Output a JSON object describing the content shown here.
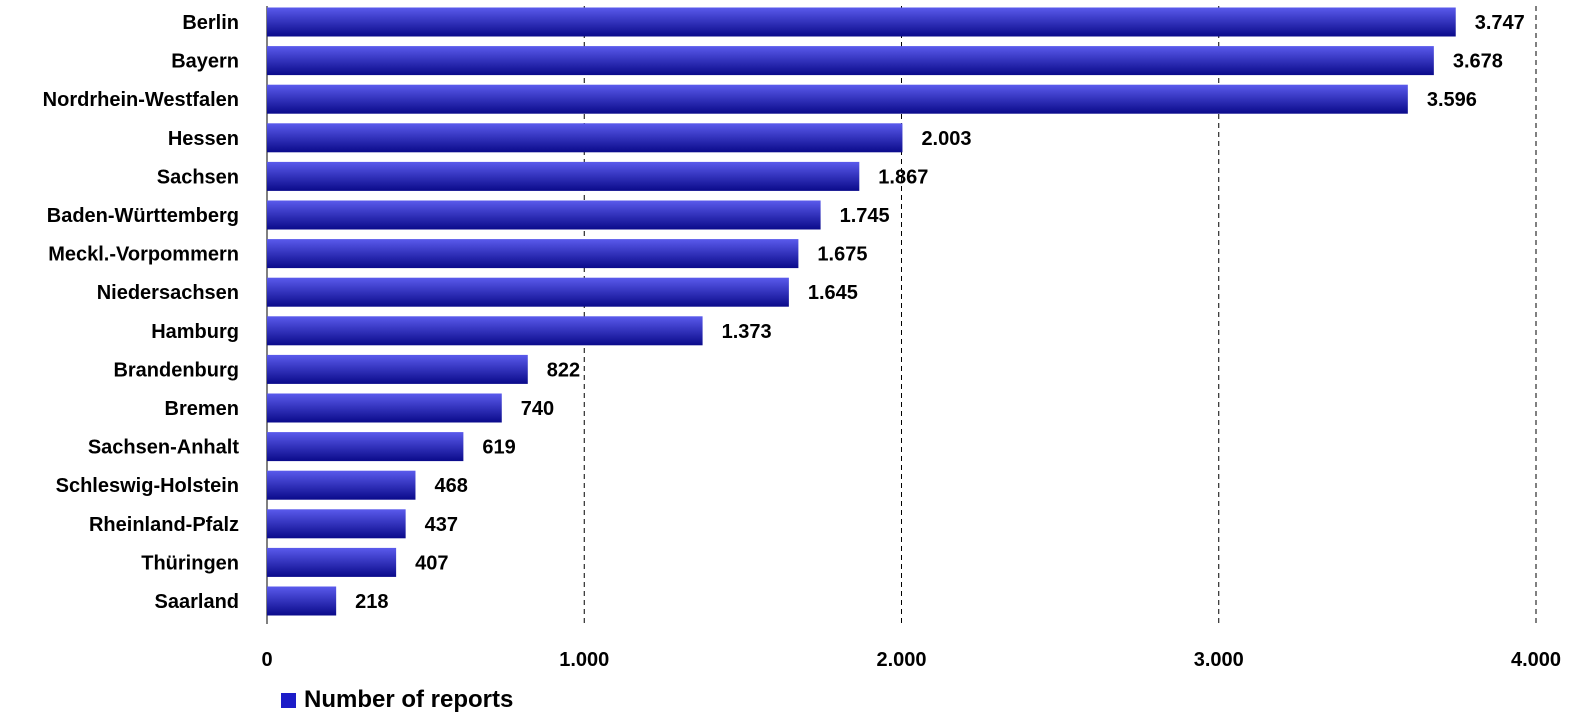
{
  "chart_data": {
    "type": "bar",
    "orientation": "horizontal",
    "categories": [
      "Berlin",
      "Bayern",
      "Nordrhein-Westfalen",
      "Hessen",
      "Sachsen",
      "Baden-Württemberg",
      "Meckl.-Vorpommern",
      "Niedersachsen",
      "Hamburg",
      "Brandenburg",
      "Bremen",
      "Sachsen-Anhalt",
      "Schleswig-Holstein",
      "Rheinland-Pfalz",
      "Thüringen",
      "Saarland"
    ],
    "series": [
      {
        "name": "Number of reports",
        "values": [
          3747,
          3678,
          3596,
          2003,
          1867,
          1745,
          1675,
          1645,
          1373,
          822,
          740,
          619,
          468,
          437,
          407,
          218
        ],
        "labels": [
          "3.747",
          "3.678",
          "3.596",
          "2.003",
          "1.867",
          "1.745",
          "1.675",
          "1.645",
          "1.373",
          "822",
          "740",
          "619",
          "468",
          "437",
          "407",
          "218"
        ]
      }
    ],
    "xlim": [
      0,
      4000
    ],
    "xticks": [
      0,
      1000,
      2000,
      3000,
      4000
    ],
    "xtick_labels": [
      "0",
      "1.000",
      "2.000",
      "3.000",
      "4.000"
    ],
    "grid": "vertical dashed",
    "legend_position": "bottom-left",
    "colors": {
      "bar_light": "#5a5aec",
      "bar_dark": "#0a0a8a",
      "legend_swatch": "#1c1cc8",
      "gridline": "#000000"
    }
  },
  "legend": {
    "label": "Number of reports"
  }
}
